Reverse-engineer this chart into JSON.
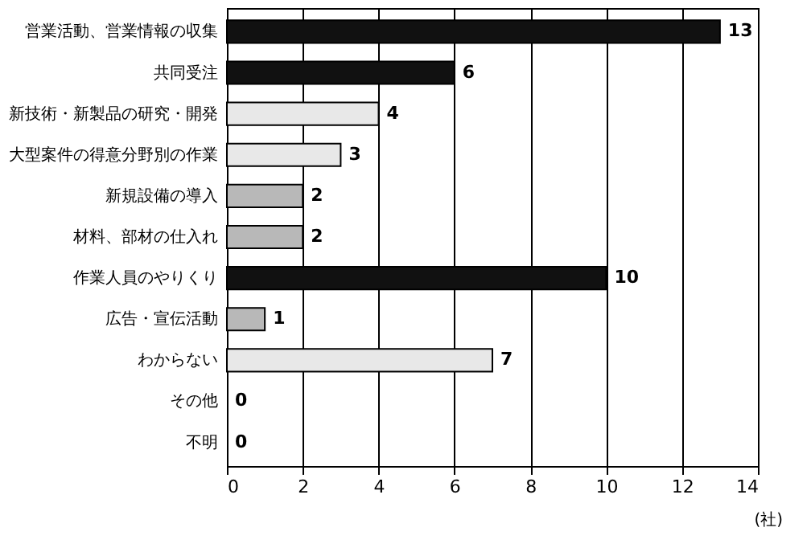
{
  "chart_data": {
    "type": "bar",
    "orientation": "horizontal",
    "categories": [
      "営業活動、営業情報の収集",
      "共同受注",
      "新技術・新製品の研究・開発",
      "大型案件の得意分野別の作業",
      "新規設備の導入",
      "材料、部材の仕入れ",
      "作業人員のやりくり",
      "広告・宣伝活動",
      "わからない",
      "その他",
      "不明"
    ],
    "values": [
      13,
      6,
      4,
      3,
      2,
      2,
      10,
      1,
      7,
      0,
      0
    ],
    "colors": [
      "#111111",
      "#111111",
      "#e8e8e8",
      "#e8e8e8",
      "#b8b8b8",
      "#b8b8b8",
      "#111111",
      "#b8b8b8",
      "#e8e8e8",
      "#e8e8e8",
      "#e8e8e8"
    ],
    "xlim": [
      0,
      14
    ],
    "xticks": [
      0,
      2,
      4,
      6,
      8,
      10,
      12,
      14
    ],
    "xlabel": "(社)",
    "grid": "x",
    "data_labels": true
  }
}
